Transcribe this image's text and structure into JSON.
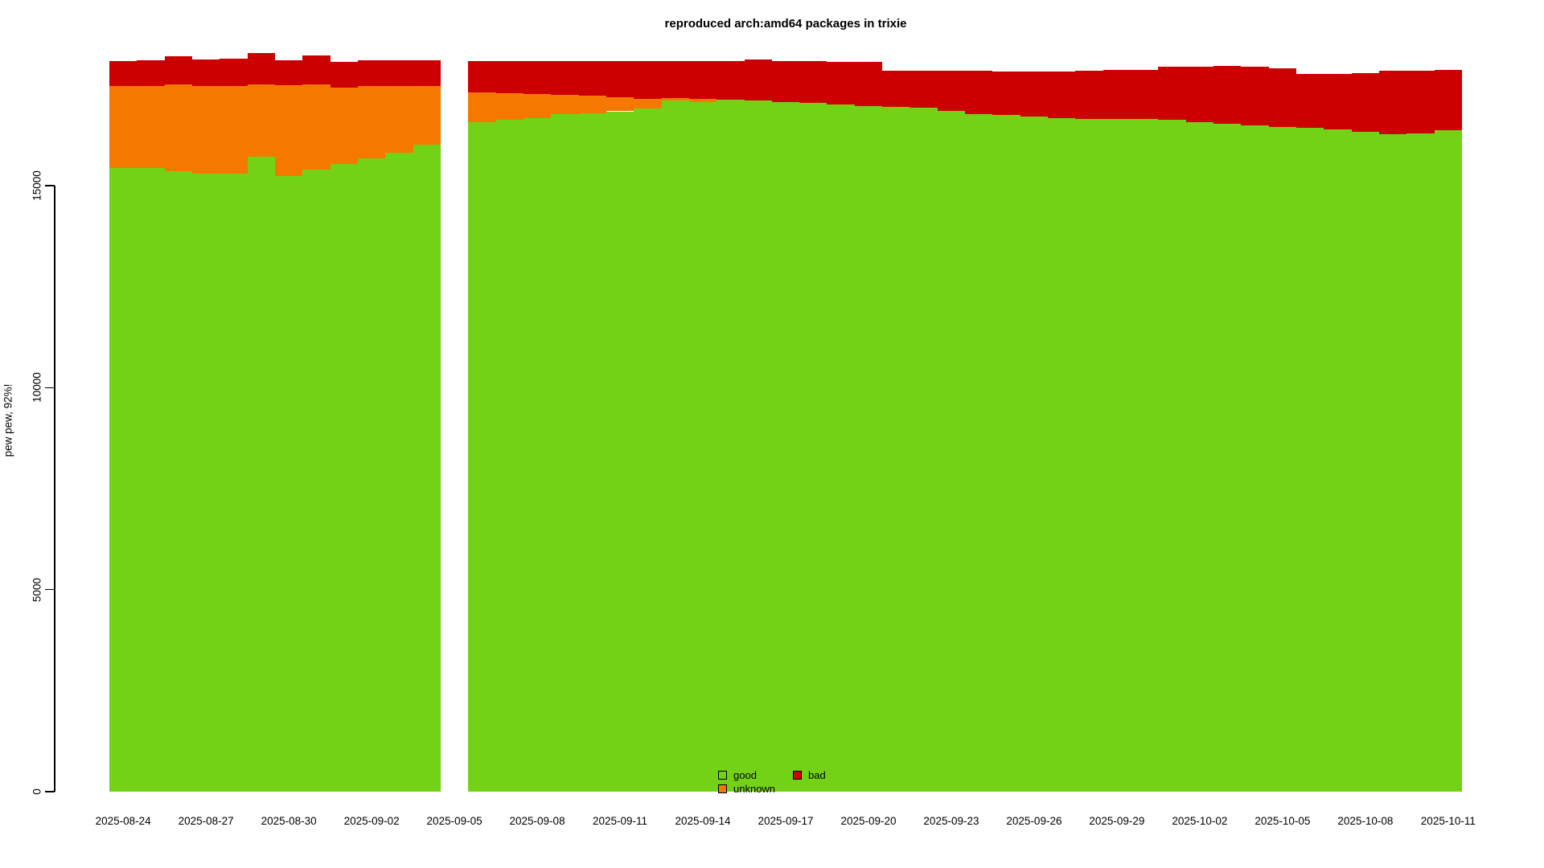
{
  "title": "reproduced arch:amd64 packages in trixie",
  "chart_data": {
    "type": "bar",
    "stacked": true,
    "title": "reproduced arch:amd64 packages in trixie",
    "xlabel": "",
    "ylabel": "pew pew, 92%!",
    "ylim": [
      0,
      18400
    ],
    "yticks": [
      0,
      5000,
      10000,
      15000
    ],
    "grid": false,
    "legend_position": "bottom-center-overlay",
    "gap_dates": [
      "2025-09-05"
    ],
    "categories": [
      "2025-08-24",
      "2025-08-25",
      "2025-08-26",
      "2025-08-27",
      "2025-08-28",
      "2025-08-29",
      "2025-08-30",
      "2025-08-31",
      "2025-09-01",
      "2025-09-02",
      "2025-09-03",
      "2025-09-04",
      "2025-09-05",
      "2025-09-06",
      "2025-09-07",
      "2025-09-08",
      "2025-09-09",
      "2025-09-10",
      "2025-09-11",
      "2025-09-12",
      "2025-09-13",
      "2025-09-14",
      "2025-09-15",
      "2025-09-16",
      "2025-09-17",
      "2025-09-18",
      "2025-09-19",
      "2025-09-20",
      "2025-09-21",
      "2025-09-22",
      "2025-09-23",
      "2025-09-24",
      "2025-09-25",
      "2025-09-26",
      "2025-09-27",
      "2025-09-28",
      "2025-09-29",
      "2025-09-30",
      "2025-10-01",
      "2025-10-02",
      "2025-10-03",
      "2025-10-04",
      "2025-10-05",
      "2025-10-06",
      "2025-10-07",
      "2025-10-08",
      "2025-10-09",
      "2025-10-10",
      "2025-10-11"
    ],
    "x_tick_labels": [
      "2025-08-24",
      "2025-08-27",
      "2025-08-30",
      "2025-09-02",
      "2025-09-05",
      "2025-09-08",
      "2025-09-11",
      "2025-09-14",
      "2025-09-17",
      "2025-09-20",
      "2025-09-23",
      "2025-09-26",
      "2025-09-29",
      "2025-10-02",
      "2025-10-05",
      "2025-10-08",
      "2025-10-11"
    ],
    "series": [
      {
        "name": "good",
        "color": "#73D216",
        "values": [
          15430,
          15430,
          15350,
          15290,
          15300,
          15720,
          15230,
          15390,
          15530,
          15670,
          15820,
          16010,
          null,
          16580,
          16630,
          16680,
          16770,
          16800,
          16840,
          16900,
          17105,
          17075,
          17135,
          17110,
          17075,
          17045,
          17010,
          16970,
          16950,
          16920,
          16850,
          16770,
          16750,
          16710,
          16670,
          16650,
          16650,
          16650,
          16630,
          16570,
          16530,
          16490,
          16450,
          16430,
          16390,
          16330,
          16270,
          16290,
          16370
        ]
      },
      {
        "name": "unknown",
        "color": "#F57900",
        "values": [
          2030,
          2040,
          2150,
          2170,
          2160,
          1790,
          2250,
          2120,
          1890,
          1800,
          1650,
          1450,
          null,
          730,
          650,
          580,
          470,
          420,
          350,
          250,
          60,
          80,
          0,
          0,
          0,
          0,
          0,
          0,
          0,
          0,
          0,
          0,
          0,
          0,
          0,
          0,
          0,
          0,
          0,
          0,
          0,
          0,
          0,
          0,
          0,
          0,
          0,
          0,
          0
        ]
      },
      {
        "name": "bad",
        "color": "#CC0000",
        "values": [
          620,
          640,
          700,
          660,
          690,
          780,
          620,
          720,
          640,
          640,
          640,
          650,
          null,
          775,
          805,
          825,
          845,
          865,
          895,
          935,
          920,
          930,
          950,
          1015,
          1010,
          1040,
          1055,
          1095,
          895,
          925,
          995,
          1075,
          1075,
          1115,
          1155,
          1195,
          1215,
          1215,
          1315,
          1375,
          1435,
          1455,
          1455,
          1335,
          1375,
          1455,
          1575,
          1555,
          1495
        ]
      }
    ]
  }
}
